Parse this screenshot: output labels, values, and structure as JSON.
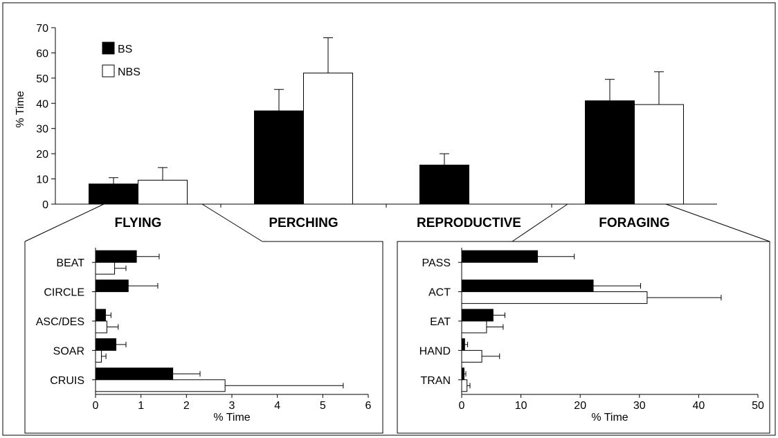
{
  "chart_data": [
    {
      "type": "bar",
      "ylabel": "% Time",
      "ylim": [
        0,
        70
      ],
      "yticks": [
        0,
        10,
        20,
        30,
        40,
        50,
        60,
        70
      ],
      "categories": [
        "FLYING",
        "PERCHING",
        "REPRODUCTIVE",
        "FORAGING"
      ],
      "legend": {
        "placement": "top-left",
        "entries": [
          "BS",
          "NBS"
        ]
      },
      "series": [
        {
          "name": "BS",
          "color": "#000000",
          "values": [
            8,
            37,
            15.5,
            41
          ],
          "errors": [
            2.5,
            8.5,
            4.5,
            8.5
          ]
        },
        {
          "name": "NBS",
          "color": "#ffffff",
          "values": [
            9.5,
            52,
            null,
            39.5
          ],
          "errors": [
            5,
            14,
            null,
            13
          ]
        }
      ]
    },
    {
      "type": "bar",
      "orientation": "horizontal",
      "xlabel": "% Time",
      "xlim": [
        0,
        6
      ],
      "xticks": [
        0,
        1,
        2,
        3,
        4,
        5,
        6
      ],
      "categories": [
        "BEAT",
        "CIRCLE",
        "ASC/DES",
        "SOAR",
        "CRUIS"
      ],
      "series": [
        {
          "name": "BS",
          "color": "#000000",
          "values": [
            0.9,
            0.72,
            0.22,
            0.45,
            1.7
          ],
          "errors": [
            0.5,
            0.65,
            0.12,
            0.22,
            0.6
          ]
        },
        {
          "name": "NBS",
          "color": "#ffffff",
          "values": [
            0.42,
            0,
            0.25,
            0.13,
            2.85
          ],
          "errors": [
            0.25,
            0,
            0.25,
            0.1,
            2.6
          ]
        }
      ]
    },
    {
      "type": "bar",
      "orientation": "horizontal",
      "xlabel": "% Time",
      "xlim": [
        0,
        50
      ],
      "xticks": [
        0,
        10,
        20,
        30,
        40,
        50
      ],
      "categories": [
        "PASS",
        "ACT",
        "EAT",
        "HAND",
        "TRAN"
      ],
      "series": [
        {
          "name": "BS",
          "color": "#000000",
          "values": [
            12.8,
            22.2,
            5.3,
            0.5,
            0.4
          ],
          "errors": [
            6.2,
            8,
            2,
            0.5,
            0.3
          ]
        },
        {
          "name": "NBS",
          "color": "#ffffff",
          "values": [
            0,
            31.3,
            4.2,
            3.4,
            0.9
          ],
          "errors": [
            0,
            12.5,
            2.8,
            3,
            0.5
          ]
        }
      ]
    }
  ]
}
